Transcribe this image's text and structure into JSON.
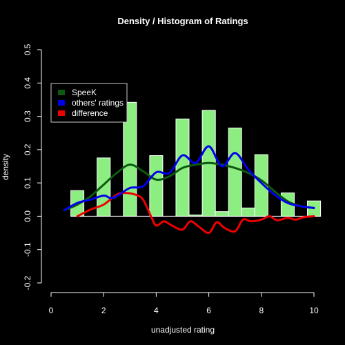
{
  "chart_data": {
    "type": "bar",
    "title": "Density / Histogram of Ratings",
    "xlabel": "unadjusted rating",
    "ylabel": "density",
    "xlim": [
      0,
      10
    ],
    "ylim": [
      -0.2,
      0.5
    ],
    "x_ticks": [
      0,
      2,
      4,
      6,
      8,
      10
    ],
    "x_tick_labels": [
      "0",
      "2",
      "4",
      "6",
      "8",
      "10"
    ],
    "y_ticks": [
      -0.2,
      -0.1,
      0.0,
      0.1,
      0.2,
      0.3,
      0.4,
      0.5
    ],
    "y_tick_labels": [
      "-0.2",
      "-0.1",
      "0.0",
      "0.1",
      "0.2",
      "0.3",
      "0.4",
      "0.5"
    ],
    "grid": false,
    "legend_position": "top-left",
    "histogram": {
      "bin_width": 0.5,
      "bins": [
        {
          "x0": 0.75,
          "x1": 1.25,
          "value": 0.077
        },
        {
          "x0": 1.25,
          "x1": 1.75,
          "value": 0.0
        },
        {
          "x0": 1.75,
          "x1": 2.25,
          "value": 0.175
        },
        {
          "x0": 2.25,
          "x1": 2.75,
          "value": 0.0
        },
        {
          "x0": 2.75,
          "x1": 3.25,
          "value": 0.342
        },
        {
          "x0": 3.25,
          "x1": 3.75,
          "value": 0.0
        },
        {
          "x0": 3.75,
          "x1": 4.25,
          "value": 0.182
        },
        {
          "x0": 4.25,
          "x1": 4.75,
          "value": 0.0
        },
        {
          "x0": 4.75,
          "x1": 5.25,
          "value": 0.292
        },
        {
          "x0": 5.25,
          "x1": 5.75,
          "value": 0.004
        },
        {
          "x0": 5.75,
          "x1": 6.25,
          "value": 0.318
        },
        {
          "x0": 6.25,
          "x1": 6.75,
          "value": 0.014
        },
        {
          "x0": 6.75,
          "x1": 7.25,
          "value": 0.265
        },
        {
          "x0": 7.25,
          "x1": 7.75,
          "value": 0.025
        },
        {
          "x0": 7.75,
          "x1": 8.25,
          "value": 0.185
        },
        {
          "x0": 8.25,
          "x1": 8.75,
          "value": 0.0
        },
        {
          "x0": 8.75,
          "x1": 9.25,
          "value": 0.07
        },
        {
          "x0": 9.25,
          "x1": 9.75,
          "value": 0.0
        },
        {
          "x0": 9.75,
          "x1": 10.25,
          "value": 0.046
        }
      ],
      "color": "#8ced80"
    },
    "series": [
      {
        "name": "SpeeK",
        "color": "#0c5a10",
        "x": [
          0.5,
          1.0,
          1.5,
          2.0,
          2.5,
          3.0,
          3.5,
          4.0,
          4.5,
          5.0,
          5.5,
          6.0,
          6.5,
          7.0,
          7.5,
          8.0,
          8.5,
          9.0,
          9.5,
          10.0
        ],
        "y": [
          0.018,
          0.035,
          0.06,
          0.095,
          0.13,
          0.155,
          0.135,
          0.11,
          0.12,
          0.145,
          0.155,
          0.16,
          0.155,
          0.145,
          0.13,
          0.108,
          0.075,
          0.045,
          0.03,
          0.025
        ]
      },
      {
        "name": "others' ratings",
        "color": "#0000ee",
        "x": [
          0.5,
          1.0,
          1.5,
          2.0,
          2.25,
          2.5,
          3.0,
          3.5,
          4.0,
          4.5,
          5.0,
          5.5,
          6.0,
          6.5,
          7.0,
          7.5,
          8.0,
          8.5,
          9.0,
          9.5,
          10.0
        ],
        "y": [
          0.018,
          0.04,
          0.05,
          0.062,
          0.055,
          0.06,
          0.085,
          0.09,
          0.132,
          0.13,
          0.183,
          0.16,
          0.21,
          0.15,
          0.19,
          0.14,
          0.1,
          0.065,
          0.04,
          0.03,
          0.025
        ]
      },
      {
        "name": "difference",
        "color": "#ee0000",
        "x": [
          1.0,
          1.5,
          2.0,
          2.5,
          2.8,
          3.2,
          3.5,
          3.8,
          4.0,
          4.3,
          4.6,
          5.0,
          5.3,
          5.6,
          6.0,
          6.3,
          6.6,
          7.0,
          7.3,
          7.6,
          8.0,
          8.3,
          8.6,
          9.0,
          9.3,
          9.6,
          10.0
        ],
        "y": [
          0.0,
          0.02,
          0.035,
          0.065,
          0.07,
          0.065,
          0.05,
          0.0,
          -0.028,
          -0.015,
          -0.028,
          -0.04,
          -0.015,
          -0.03,
          -0.05,
          -0.018,
          -0.035,
          -0.045,
          -0.01,
          -0.015,
          -0.01,
          0.0,
          -0.012,
          -0.005,
          -0.01,
          -0.003,
          0.0
        ]
      }
    ]
  }
}
